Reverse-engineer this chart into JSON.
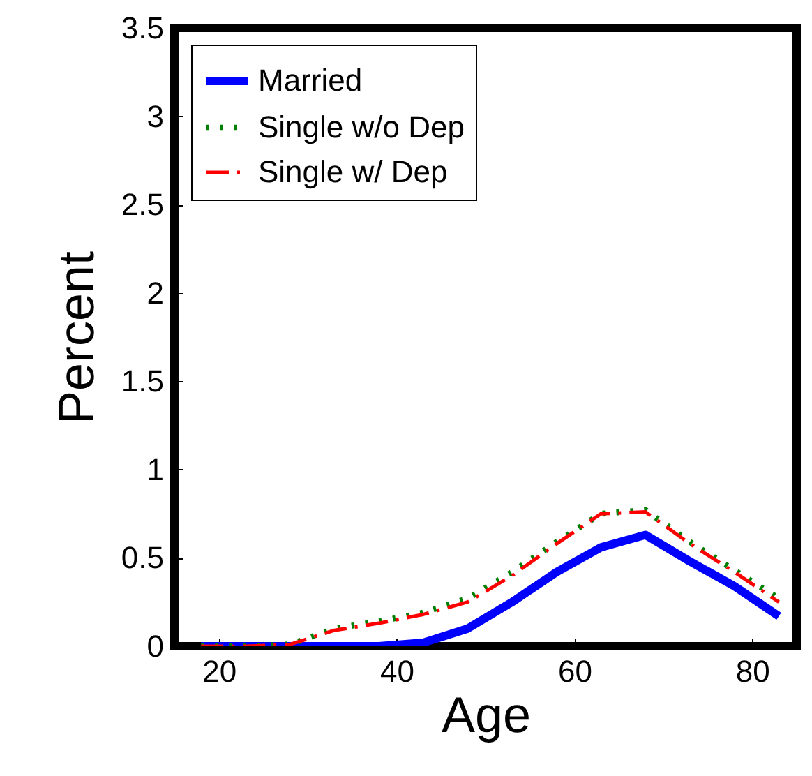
{
  "chart_data": {
    "type": "line",
    "xlabel": "Age",
    "ylabel": "Percent",
    "x": [
      18,
      23,
      28,
      33,
      38,
      43,
      48,
      53,
      58,
      63,
      68,
      73,
      78,
      83
    ],
    "series": [
      {
        "name": "Married",
        "color": "#0000ff",
        "line_style": "solid",
        "values": [
          0,
          0,
          0,
          0,
          0,
          0.02,
          0.1,
          0.25,
          0.42,
          0.56,
          0.63,
          0.48,
          0.34,
          0.17
        ]
      },
      {
        "name": "Single w/o Dep",
        "color": "#008000",
        "line_style": "dotted",
        "values": [
          0,
          0,
          0.01,
          0.1,
          0.14,
          0.19,
          0.27,
          0.42,
          0.59,
          0.75,
          0.77,
          0.59,
          0.43,
          0.27
        ]
      },
      {
        "name": "Single w/ Dep",
        "color": "#ff0000",
        "line_style": "dashed",
        "values": [
          0,
          0,
          0.01,
          0.09,
          0.13,
          0.18,
          0.25,
          0.4,
          0.58,
          0.75,
          0.76,
          0.58,
          0.42,
          0.25
        ]
      }
    ],
    "xlim": [
      15,
      85
    ],
    "xticks": [
      20,
      40,
      60,
      80
    ],
    "ylim": [
      0,
      3.5
    ],
    "yticks": [
      0,
      0.5,
      1,
      1.5,
      2,
      2.5,
      3,
      3.5
    ],
    "grid": false,
    "legend": "top left",
    "marker": "none"
  }
}
